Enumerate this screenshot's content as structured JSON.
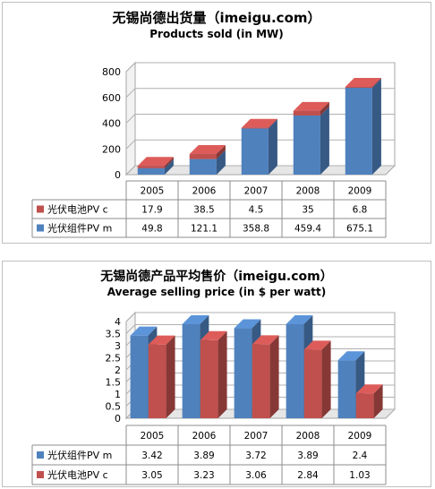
{
  "chart_data": [
    {
      "type": "bar",
      "stacked": true,
      "title": "无锡尚德出货量（imeigu.com）",
      "subtitle": "Products sold (in MW)",
      "categories": [
        "2005",
        "2006",
        "2007",
        "2008",
        "2009"
      ],
      "ylim": [
        0,
        800
      ],
      "yticks": [
        "0",
        "200",
        "400",
        "600",
        "800"
      ],
      "grid": true,
      "legend": "table-left",
      "table_rows": [
        {
          "name": "光伏电池PV c",
          "color": "#c0504d",
          "values": [
            17.9,
            38.5,
            4.5,
            35,
            6.8
          ]
        },
        {
          "name": "光伏组件PV m",
          "color": "#4f81bd",
          "values": [
            49.8,
            121.1,
            358.8,
            459.4,
            675.1
          ]
        }
      ],
      "table_text": [
        [
          "17.9",
          "38.5",
          "4.5",
          "35",
          "6.8"
        ],
        [
          "49.8",
          "121.1",
          "358.8",
          "459.4",
          "675.1"
        ]
      ]
    },
    {
      "type": "bar",
      "stacked": false,
      "title": "无锡尚德产品平均售价（imeigu.com）",
      "subtitle": "Average selling price (in $ per watt)",
      "categories": [
        "2005",
        "2006",
        "2007",
        "2008",
        "2009"
      ],
      "ylim": [
        0,
        4
      ],
      "yticks": [
        "0",
        "0.5",
        "1",
        "1.5",
        "2",
        "2.5",
        "3",
        "3.5",
        "4"
      ],
      "grid": true,
      "legend": "table-left",
      "table_rows": [
        {
          "name": "光伏组件PV m",
          "color": "#4f81bd",
          "values": [
            3.42,
            3.89,
            3.72,
            3.89,
            2.4
          ]
        },
        {
          "name": "光伏电池PV c",
          "color": "#c0504d",
          "values": [
            3.05,
            3.23,
            3.06,
            2.84,
            1.03
          ]
        }
      ],
      "table_text": [
        [
          "3.42",
          "3.89",
          "3.72",
          "3.89",
          "2.4"
        ],
        [
          "3.05",
          "3.23",
          "3.06",
          "2.84",
          "1.03"
        ]
      ]
    }
  ]
}
